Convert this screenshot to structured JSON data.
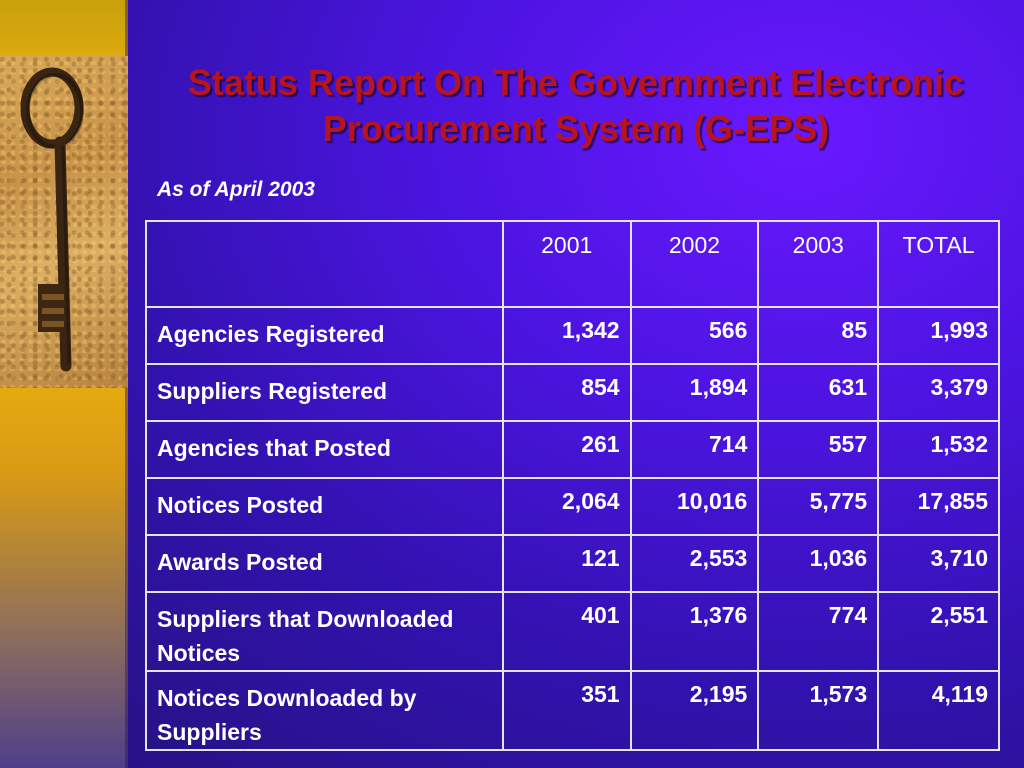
{
  "slide": {
    "title": "Status Report On The Government Electronic Procurement System (G-EPS)",
    "subtitle": "As of April 2003",
    "colors": {
      "title": "#b8141e",
      "background": "#4b14e0",
      "strip": "#f2b70a",
      "text": "#ffffff"
    },
    "image": "key-icon"
  },
  "table": {
    "headers": [
      "",
      "2001",
      "2002",
      "2003",
      "TOTAL"
    ],
    "rows": [
      {
        "label": "Agencies Registered",
        "values": [
          "1,342",
          "566",
          "85",
          "1,993"
        ]
      },
      {
        "label": "Suppliers Registered",
        "values": [
          "854",
          "1,894",
          "631",
          "3,379"
        ]
      },
      {
        "label": "Agencies that Posted",
        "values": [
          "261",
          "714",
          "557",
          "1,532"
        ]
      },
      {
        "label": "Notices Posted",
        "values": [
          "2,064",
          "10,016",
          "5,775",
          "17,855"
        ]
      },
      {
        "label": "Awards Posted",
        "values": [
          "121",
          "2,553",
          "1,036",
          "3,710"
        ]
      },
      {
        "label": "Suppliers that Downloaded Notices",
        "values": [
          "401",
          "1,376",
          "774",
          "2,551"
        ]
      },
      {
        "label": "Notices Downloaded by Suppliers",
        "values": [
          "351",
          "2,195",
          "1,573",
          "4,119"
        ]
      }
    ]
  }
}
